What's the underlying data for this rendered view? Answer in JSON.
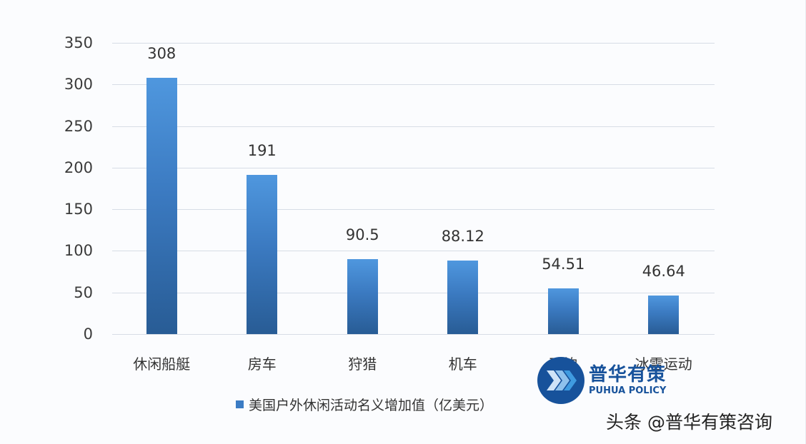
{
  "chart_data": {
    "type": "bar",
    "title": "",
    "categories": [
      "休闲船艇",
      "房车",
      "狩猎",
      "机车",
      "飞钓",
      "冰雪运动"
    ],
    "values": [
      308,
      191,
      90.5,
      88.12,
      54.51,
      46.64
    ],
    "value_labels": [
      "308",
      "191",
      "90.5",
      "88.12",
      "54.51",
      "46.64"
    ],
    "series": [
      {
        "name": "美国户外休闲活动名义增加值（亿美元）",
        "values": [
          308,
          191,
          90.5,
          88.12,
          54.51,
          46.64
        ]
      }
    ],
    "xlabel": "",
    "ylabel": "",
    "ylim": [
      0,
      350
    ],
    "yticks": [
      "350",
      "300",
      "250",
      "200",
      "150",
      "100",
      "50",
      "0"
    ],
    "grid": true,
    "legend_position": "bottom",
    "bar_color": "#3b7cc4"
  },
  "legend": {
    "label": "美国户外休闲活动名义增加值（亿美元）"
  },
  "logo": {
    "cn": "普华有策",
    "en": "PUHUA POLICY",
    "color": "#17529b"
  },
  "watermark": {
    "text": "头条 @普华有策咨询"
  }
}
